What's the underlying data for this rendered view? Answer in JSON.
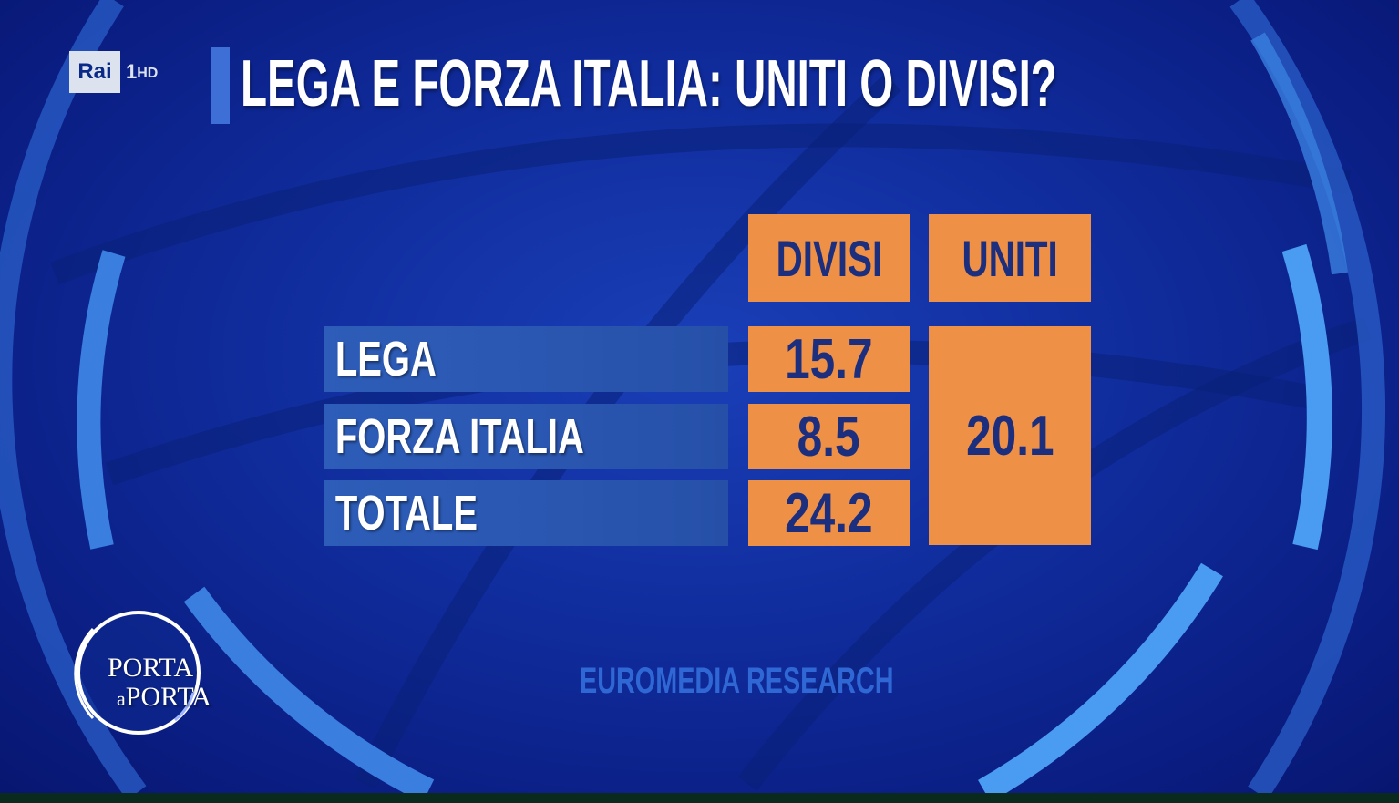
{
  "channel": {
    "name": "Rai",
    "number": "1",
    "quality": "HD"
  },
  "title": "LEGA E FORZA ITALIA: UNITI O DIVISI?",
  "source": "EUROMEDIA RESEARCH",
  "show_logo": {
    "line1": "PORTA",
    "line2_small": "a",
    "line2": "PORTA"
  },
  "colors": {
    "background": "#102c9c",
    "cell": "#ef9047",
    "label_bar": "#2d5db8",
    "value_text": "#1c2f7e",
    "ring": "#3a7fe0"
  },
  "chart_data": {
    "type": "table",
    "title": "LEGA E FORZA ITALIA: UNITI O DIVISI?",
    "columns": [
      "DIVISI",
      "UNITI"
    ],
    "rows": [
      {
        "label": "LEGA",
        "divisi": "15.7"
      },
      {
        "label": "FORZA ITALIA",
        "divisi": "8.5"
      },
      {
        "label": "TOTALE",
        "divisi": "24.2"
      }
    ],
    "uniti": "20.1",
    "source": "EUROMEDIA RESEARCH"
  }
}
